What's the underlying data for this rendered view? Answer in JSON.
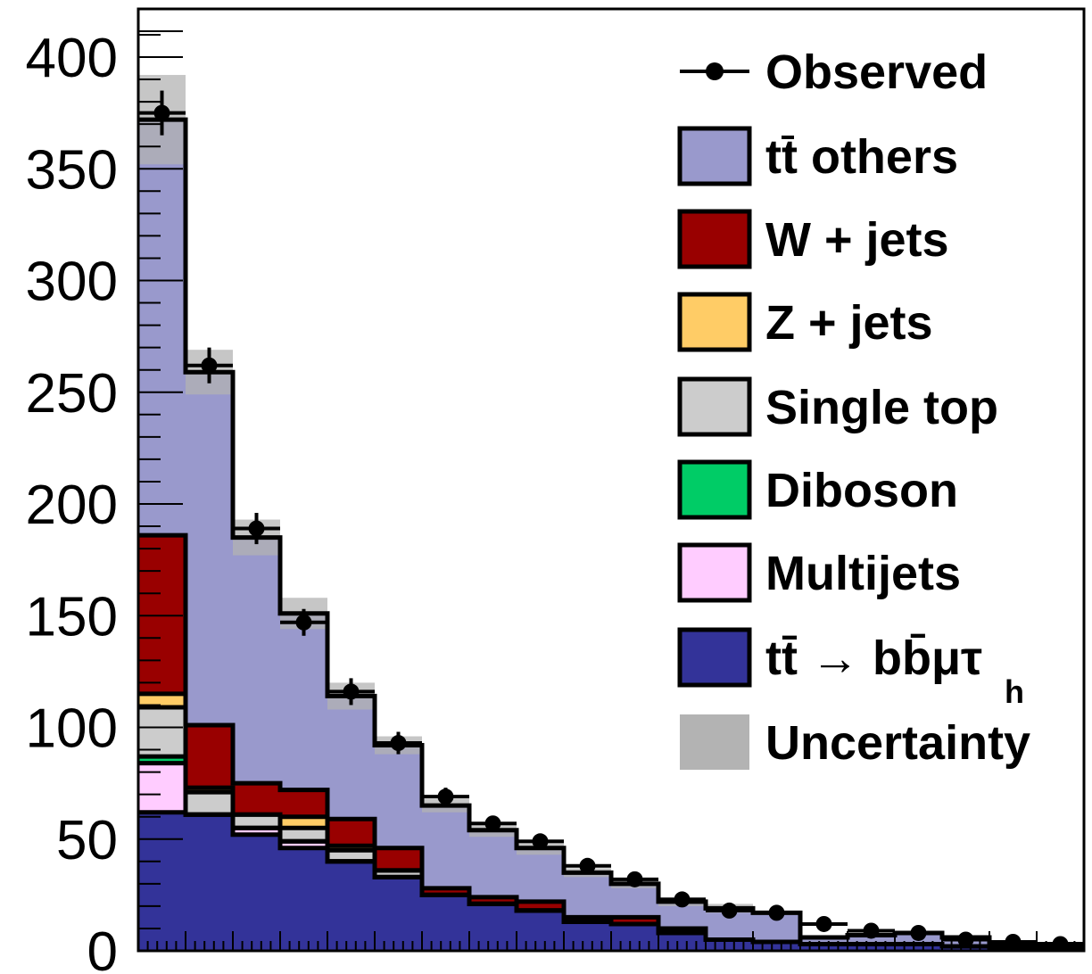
{
  "chart_data": {
    "type": "bar",
    "stacked": true,
    "bins": 20,
    "ylim": [
      0,
      420
    ],
    "y_ticks": [
      "0",
      "50",
      "100",
      "150",
      "200",
      "250",
      "300",
      "350",
      "400"
    ],
    "series": [
      {
        "name": "tt̄ → bb̄μτh",
        "color": "#333399",
        "values": [
          62,
          61,
          52,
          46,
          40,
          33,
          25,
          21,
          18,
          13,
          12,
          8,
          5,
          4,
          3,
          3,
          3,
          2,
          1,
          1
        ]
      },
      {
        "name": "Multijets",
        "color": "#ffccff",
        "values": [
          22,
          0,
          3,
          3,
          0,
          0,
          0,
          0,
          0,
          0,
          0,
          0,
          0,
          0,
          0,
          0,
          0,
          0,
          0,
          0
        ]
      },
      {
        "name": "Diboson",
        "color": "#00cc66",
        "values": [
          3,
          0,
          0,
          0,
          0,
          0,
          0,
          0,
          0,
          0,
          0,
          0,
          0,
          0,
          0,
          0,
          0,
          0,
          0,
          0
        ]
      },
      {
        "name": "Single top",
        "color": "#cccccc",
        "values": [
          22,
          10,
          6,
          6,
          5,
          3,
          0,
          0,
          0,
          0,
          0,
          0,
          0,
          0,
          0,
          0,
          0,
          0,
          0,
          0
        ]
      },
      {
        "name": "Z + jets",
        "color": "#ffcc66",
        "values": [
          6,
          2,
          0,
          5,
          2,
          0,
          0,
          0,
          0,
          0,
          0,
          0,
          0,
          0,
          0,
          0,
          0,
          0,
          0,
          0
        ]
      },
      {
        "name": "W + jets",
        "color": "#990000",
        "values": [
          71,
          28,
          14,
          12,
          12,
          10,
          3,
          3,
          4,
          2,
          3,
          2,
          0,
          0,
          0,
          0,
          0,
          0,
          0,
          0
        ]
      },
      {
        "name": "tt̄ others",
        "color": "#9999cc",
        "values": [
          186,
          158,
          110,
          79,
          55,
          46,
          37,
          30,
          24,
          20,
          15,
          12,
          14,
          13,
          3,
          4,
          5,
          4,
          2,
          2
        ]
      }
    ],
    "observed": {
      "name": "Observed",
      "values": [
        375,
        262,
        189,
        147,
        116,
        93,
        69,
        57,
        49,
        38,
        32,
        23,
        18,
        17,
        12,
        9,
        8,
        5,
        4,
        3
      ],
      "errors": [
        10,
        8,
        7,
        6,
        6,
        5,
        4,
        3,
        3,
        3,
        3,
        2,
        2,
        2,
        2,
        2,
        2,
        2,
        1,
        1
      ]
    },
    "uncertainty": {
      "name": "Uncertainty",
      "color": "#b3b3b3",
      "half_width": [
        20,
        10,
        8,
        7,
        6,
        4,
        3,
        3,
        3,
        2,
        2,
        2,
        2,
        1,
        1,
        1,
        1,
        1,
        1,
        1
      ]
    },
    "legend": {
      "position": "top-right",
      "entries": [
        {
          "label": "Observed",
          "type": "marker"
        },
        {
          "label": "t",
          "label_bar": "t",
          "rest": " others",
          "type": "box",
          "fill": "#9999cc"
        },
        {
          "label": "W + jets",
          "type": "box",
          "fill": "#990000"
        },
        {
          "label": "Z + jets",
          "type": "box",
          "fill": "#ffcc66"
        },
        {
          "label": "Single top",
          "type": "box",
          "fill": "#cccccc"
        },
        {
          "label": "Diboson",
          "type": "box",
          "fill": "#00cc66"
        },
        {
          "label": "Multijets",
          "type": "box",
          "fill": "#ffccff"
        },
        {
          "label": "tt̄  → bb̄μτ",
          "subscript": "h",
          "type": "box",
          "fill": "#333399"
        },
        {
          "label": "Uncertainty",
          "type": "band",
          "fill": "#b3b3b3"
        }
      ]
    }
  }
}
